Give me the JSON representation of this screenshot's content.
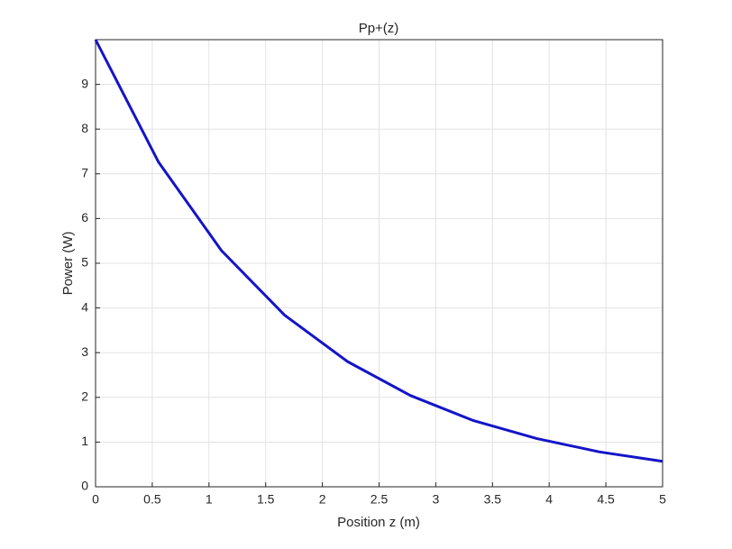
{
  "chart_data": {
    "type": "line",
    "title": "Pp+(z)",
    "x_label": "Position z (m)",
    "y_label": "Power (W)",
    "series": [
      {
        "name": "Pp+(z)",
        "color": "#1414c8",
        "x": [
          0,
          0.5556,
          1.1111,
          1.6667,
          2.2222,
          2.7778,
          3.3333,
          3.8889,
          4.4444,
          5
        ],
        "values": [
          10,
          7.26,
          5.28,
          3.84,
          2.8,
          2.04,
          1.48,
          1.08,
          0.78,
          0.57
        ]
      }
    ],
    "xlim": [
      0,
      5
    ],
    "xticks": [
      0,
      0.5,
      1,
      1.5,
      2,
      2.5,
      3,
      3.5,
      4,
      4.5,
      5
    ],
    "ylim": [
      0,
      10
    ],
    "yticks": [
      0,
      1,
      2,
      3,
      4,
      5,
      6,
      7,
      8,
      9
    ],
    "grid": true
  }
}
